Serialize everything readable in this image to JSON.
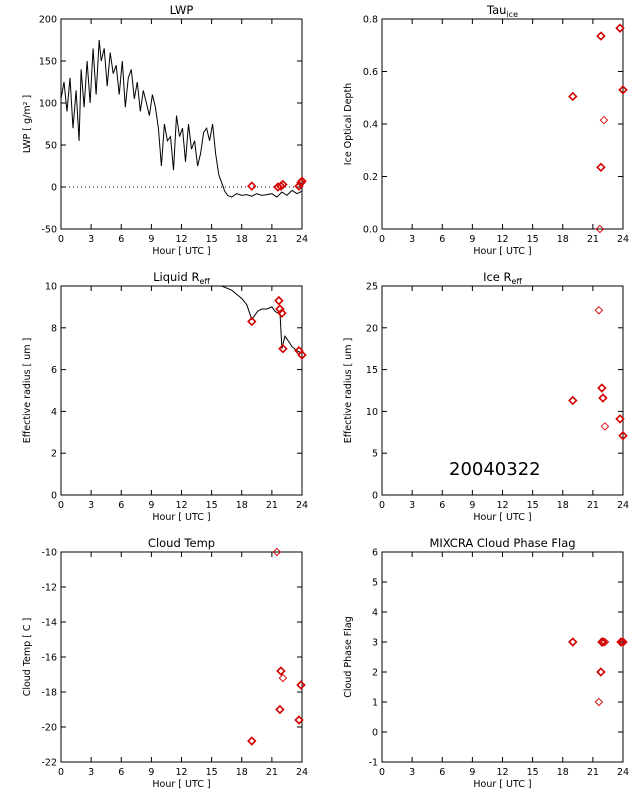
{
  "date_label": "20040322",
  "chart_data": [
    {
      "id": "lwp",
      "type": "line",
      "title": "LWP",
      "title_sub": "",
      "xlabel": "Hour [ UTC ]",
      "ylabel": "LWP [ g/m² ]",
      "xlim": [
        0,
        24
      ],
      "ylim": [
        -50,
        200
      ],
      "xticks": [
        0,
        3,
        6,
        9,
        12,
        15,
        18,
        21,
        24
      ],
      "yticks": [
        -50,
        0,
        50,
        100,
        150,
        200
      ],
      "zero_line": true,
      "line": {
        "x": [
          0,
          0.3,
          0.6,
          0.9,
          1.2,
          1.5,
          1.8,
          2.0,
          2.3,
          2.6,
          2.9,
          3.2,
          3.5,
          3.8,
          4.0,
          4.3,
          4.6,
          4.9,
          5.2,
          5.5,
          5.8,
          6.1,
          6.4,
          6.7,
          7.0,
          7.3,
          7.6,
          7.9,
          8.2,
          8.5,
          8.8,
          9.1,
          9.4,
          9.7,
          10.0,
          10.3,
          10.6,
          10.9,
          11.2,
          11.5,
          11.8,
          12.1,
          12.4,
          12.7,
          13.0,
          13.3,
          13.6,
          13.9,
          14.2,
          14.5,
          14.8,
          15.1,
          15.4,
          15.7,
          16.0,
          16.3,
          16.6,
          17.0,
          17.5,
          18.0,
          18.5,
          19.0,
          19.5,
          20.0,
          20.5,
          21.0,
          21.5,
          22.0,
          22.5,
          23.0,
          23.5,
          24.0
        ],
        "y": [
          105,
          125,
          90,
          130,
          70,
          115,
          55,
          140,
          95,
          150,
          100,
          165,
          110,
          175,
          150,
          165,
          120,
          160,
          135,
          145,
          110,
          150,
          95,
          130,
          140,
          105,
          125,
          90,
          115,
          100,
          85,
          110,
          95,
          70,
          25,
          75,
          55,
          60,
          20,
          85,
          60,
          70,
          30,
          75,
          45,
          55,
          25,
          40,
          65,
          70,
          55,
          75,
          40,
          15,
          5,
          -5,
          -10,
          -12,
          -8,
          -10,
          -9,
          -11,
          -8,
          -10,
          -9,
          -8,
          -12,
          -6,
          -10,
          -4,
          -8,
          -5
        ]
      },
      "points": {
        "x": [
          19.0,
          21.6,
          21.9,
          22.1,
          23.7,
          23.9,
          24.0
        ],
        "y": [
          1,
          0,
          1,
          3,
          1,
          5,
          7
        ]
      }
    },
    {
      "id": "tau",
      "type": "scatter",
      "title": "Tau",
      "title_sub": "ice",
      "xlabel": "Hour [ UTC ]",
      "ylabel": "Ice Optical Depth",
      "xlim": [
        0,
        24
      ],
      "ylim": [
        0,
        0.8
      ],
      "xticks": [
        0,
        3,
        6,
        9,
        12,
        15,
        18,
        21,
        24
      ],
      "yticks": [
        "0.0",
        "0.2",
        "0.4",
        "0.6",
        "0.8"
      ],
      "points": {
        "x": [
          19.0,
          21.7,
          21.8,
          22.1,
          23.7,
          24.0
        ],
        "y": [
          0.505,
          0.0,
          0.735,
          0.415,
          0.765,
          0.53
        ],
        "thin": [
          false,
          true,
          false,
          true,
          false,
          false
        ]
      },
      "extra_points": {
        "x": [
          21.8
        ],
        "y": [
          0.235
        ]
      }
    },
    {
      "id": "liquid_reff",
      "type": "line",
      "title": "Liquid R",
      "title_sub": "eff",
      "xlabel": "Hour [ UTC ]",
      "ylabel": "Effective radius [ um ]",
      "xlim": [
        0,
        24
      ],
      "ylim": [
        0,
        10
      ],
      "xticks": [
        0,
        3,
        6,
        9,
        12,
        15,
        18,
        21,
        24
      ],
      "yticks": [
        0,
        2,
        4,
        6,
        8,
        10
      ],
      "line": {
        "x": [
          15.5,
          16.0,
          16.5,
          17.0,
          17.5,
          18.0,
          18.5,
          19.0,
          19.3,
          19.6,
          20.0,
          20.5,
          21.0,
          21.3,
          21.6,
          21.8,
          22.0,
          22.3,
          22.6,
          23.0,
          23.5,
          24.0
        ],
        "y": [
          10,
          10,
          9.9,
          9.8,
          9.6,
          9.4,
          9.1,
          8.4,
          8.6,
          8.8,
          8.9,
          8.9,
          9.0,
          8.8,
          8.7,
          8.8,
          7.0,
          7.6,
          7.4,
          7.1,
          6.9,
          6.8
        ]
      },
      "points": {
        "x": [
          19.0,
          21.7,
          21.8,
          22.0,
          22.1,
          23.7,
          24.0
        ],
        "y": [
          8.3,
          9.3,
          8.9,
          8.7,
          7.0,
          6.9,
          6.7
        ]
      }
    },
    {
      "id": "ice_reff",
      "type": "scatter",
      "title": "Ice R",
      "title_sub": "eff",
      "xlabel": "Hour [ UTC ]",
      "ylabel": "Effective radius [ um ]",
      "xlim": [
        0,
        24
      ],
      "ylim": [
        0,
        25
      ],
      "xticks": [
        0,
        3,
        6,
        9,
        12,
        15,
        18,
        21,
        24
      ],
      "yticks": [
        0,
        5,
        10,
        15,
        20,
        25
      ],
      "points": {
        "x": [
          19.0,
          21.6,
          21.9,
          22.0,
          22.2,
          23.7,
          24.0
        ],
        "y": [
          11.3,
          22.1,
          12.8,
          11.6,
          8.2,
          9.1,
          7.1
        ],
        "thin": [
          false,
          true,
          false,
          false,
          true,
          false,
          false
        ]
      }
    },
    {
      "id": "cloud_temp",
      "type": "scatter",
      "title": "Cloud Temp",
      "title_sub": "",
      "xlabel": "Hour [ UTC ]",
      "ylabel": "Cloud Temp [ C ]",
      "xlim": [
        0,
        24
      ],
      "ylim": [
        -22,
        -10
      ],
      "xticks": [
        0,
        3,
        6,
        9,
        12,
        15,
        18,
        21,
        24
      ],
      "yticks": [
        -22,
        -20,
        -18,
        -16,
        -14,
        -12,
        -10
      ],
      "points": {
        "x": [
          19.0,
          21.5,
          21.8,
          21.9,
          22.1,
          23.7,
          23.9
        ],
        "y": [
          -20.8,
          -10.0,
          -19.0,
          -16.8,
          -17.2,
          -19.6,
          -17.6
        ],
        "thin": [
          false,
          true,
          false,
          false,
          true,
          false,
          false
        ]
      }
    },
    {
      "id": "phase_flag",
      "type": "scatter",
      "title": "MIXCRA Cloud Phase Flag",
      "title_sub": "",
      "xlabel": "Hour [ UTC ]",
      "ylabel": "Cloud Phase Flag",
      "xlim": [
        0,
        24
      ],
      "ylim": [
        -1,
        6
      ],
      "xticks": [
        0,
        3,
        6,
        9,
        12,
        15,
        18,
        21,
        24
      ],
      "yticks": [
        -1,
        0,
        1,
        2,
        3,
        4,
        5,
        6
      ],
      "points": {
        "x": [
          19.0,
          21.6,
          21.8,
          21.9,
          22.0,
          22.2,
          23.8,
          24.0
        ],
        "y": [
          3,
          1,
          2,
          3,
          3,
          3,
          3,
          3
        ],
        "thin": [
          false,
          true,
          false,
          false,
          false,
          true,
          false,
          false
        ]
      }
    }
  ]
}
